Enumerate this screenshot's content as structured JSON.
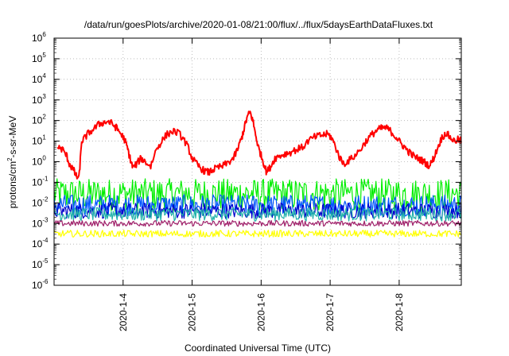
{
  "chart_data": {
    "type": "line",
    "title": "/data/run/goesPlots/archive/2020-01-08/21:00/flux/../flux/5daysEarthDataFluxes.txt",
    "xlabel": "Coordinated Universal Time (UTC)",
    "ylabel": "protons/cm2-s-sr-MeV",
    "ylabel_parts": {
      "pre": "protons/cm",
      "sup": "2",
      "post": "-s-sr-MeV"
    },
    "yscale": "log",
    "ylim": [
      1e-06,
      1000000.0
    ],
    "xlim": [
      3.0,
      8.9
    ],
    "x_unit": "day of January 2020",
    "grid": true,
    "x_tick_values": [
      4,
      5,
      6,
      7,
      8
    ],
    "x_tick_labels": [
      "2020-1-4",
      "2020-1-5",
      "2020-1-6",
      "2020-1-7",
      "2020-1-8"
    ],
    "y_tick_exponents": [
      -6,
      -5,
      -4,
      -3,
      -2,
      -1,
      0,
      1,
      2,
      3,
      4,
      5,
      6
    ],
    "y_tick_base": "10",
    "series": [
      {
        "color": "#ff0000",
        "x": [
          3.05,
          3.12,
          3.18,
          3.22,
          3.28,
          3.32,
          3.36,
          3.4,
          3.45,
          3.5,
          3.58,
          3.66,
          3.72,
          3.78,
          3.84,
          3.9,
          3.96,
          4.02,
          4.06,
          4.1,
          4.14,
          4.2,
          4.26,
          4.32,
          4.4,
          4.48,
          4.56,
          4.64,
          4.72,
          4.8,
          4.88,
          4.94,
          5.0,
          5.06,
          5.12,
          5.18,
          5.24,
          5.3,
          5.36,
          5.44,
          5.52,
          5.6,
          5.66,
          5.72,
          5.76,
          5.8,
          5.84,
          5.88,
          5.92,
          5.96,
          6.0,
          6.04,
          6.08,
          6.14,
          6.2,
          6.28,
          6.36,
          6.44,
          6.52,
          6.6,
          6.68,
          6.76,
          6.84,
          6.9,
          6.96,
          7.02,
          7.08,
          7.14,
          7.2,
          7.28,
          7.36,
          7.44,
          7.52,
          7.6,
          7.66,
          7.72,
          7.78,
          7.84,
          7.9,
          7.96,
          8.02,
          8.08,
          8.14,
          8.2,
          8.26,
          8.32,
          8.38,
          8.44,
          8.5,
          8.56,
          8.62,
          8.68,
          8.74,
          8.8,
          8.86,
          8.9
        ],
        "y": [
          5,
          4,
          2,
          0.8,
          0.4,
          0.2,
          0.15,
          10,
          15,
          25,
          40,
          70,
          80,
          90,
          70,
          45,
          25,
          12,
          5,
          1.5,
          0.5,
          0.8,
          1.5,
          1,
          0.6,
          4,
          10,
          22,
          30,
          25,
          12,
          5,
          1.5,
          0.8,
          0.5,
          0.35,
          0.3,
          0.4,
          0.5,
          0.6,
          0.9,
          1.5,
          4,
          15,
          50,
          150,
          250,
          100,
          20,
          5,
          2,
          0.8,
          0.3,
          0.6,
          1.5,
          2,
          2.5,
          3,
          4,
          5,
          10,
          15,
          18,
          20,
          22,
          15,
          5,
          1.5,
          0.8,
          1.2,
          2,
          4,
          10,
          20,
          30,
          40,
          45,
          40,
          25,
          15,
          8,
          5,
          3,
          2,
          1.5,
          1.2,
          0.9,
          0.6,
          1.5,
          5,
          15,
          25,
          15,
          10,
          12,
          10
        ]
      },
      {
        "color": "#00ee00",
        "y_median": 0.03,
        "spread_decades": [
          -1.0,
          0.7
        ]
      },
      {
        "color": "#0055ff",
        "y_median": 0.008,
        "spread_decades": [
          -0.6,
          0.5
        ]
      },
      {
        "color": "#0000cc",
        "y_median": 0.004,
        "spread_decades": [
          -0.4,
          0.4
        ]
      },
      {
        "color": "#20b2aa",
        "y_median": 0.003,
        "spread_decades": [
          -0.4,
          0.3
        ]
      },
      {
        "color": "#a0206a",
        "y_median": 0.001,
        "spread_decades": [
          -0.15,
          0.15
        ]
      },
      {
        "color": "#ffff00",
        "y_median": 0.0003,
        "spread_decades": [
          -0.15,
          0.2
        ]
      }
    ]
  }
}
